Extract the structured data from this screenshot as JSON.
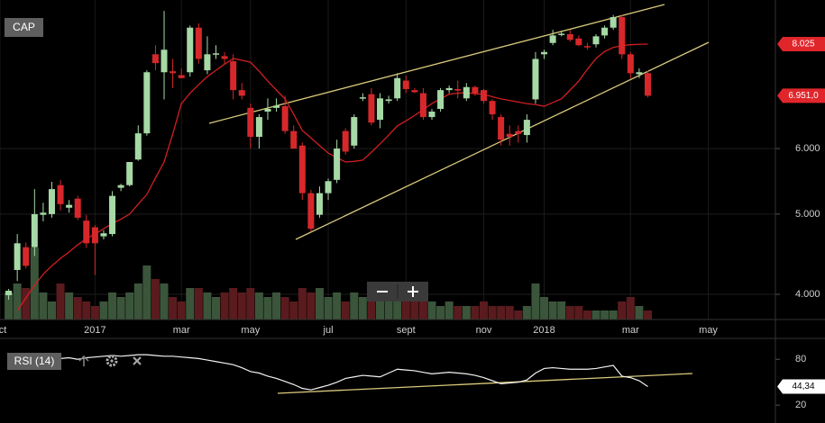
{
  "chart_data": [
    {
      "type": "candlestick",
      "title": "CAP",
      "categories": [
        "oct",
        null,
        null,
        null,
        null,
        null,
        null,
        null,
        null,
        null,
        null,
        "2017",
        null,
        null,
        null,
        null,
        null,
        null,
        null,
        null,
        null,
        "mar",
        null,
        null,
        null,
        null,
        null,
        null,
        null,
        "may",
        null,
        null,
        null,
        null,
        null,
        null,
        null,
        null,
        "jul",
        null,
        null,
        null,
        null,
        null,
        null,
        null,
        null,
        "sept",
        null,
        null,
        null,
        null,
        null,
        null,
        null,
        null,
        "nov",
        null,
        null,
        null,
        null,
        null,
        null,
        "2018",
        null,
        null,
        null,
        null,
        null,
        null,
        null,
        null,
        null,
        "mar",
        null,
        null,
        null,
        null,
        null,
        null,
        null,
        null,
        "may"
      ],
      "open": [
        null,
        3990,
        4280,
        4560,
        4560,
        4990,
        5000,
        5420,
        5090,
        5220,
        4910,
        4820,
        4700,
        4730,
        5380,
        5420,
        5820,
        6260,
        7800,
        7420,
        7440,
        7360,
        7420,
        8400,
        7460,
        7810,
        7760,
        7650,
        7060,
        6720,
        6200,
        6650,
        6720,
        6750,
        6300,
        6050,
        5300,
        4990,
        5300,
        5500,
        6300,
        6050,
        6900,
        6980,
        6500,
        6850,
        6900,
        7250,
        7060,
        7000,
        6550,
        6700,
        7060,
        7080,
        6900,
        7120,
        7060,
        6850,
        6550,
        6250,
        6300,
        6230,
        6880,
        7800,
        8050,
        8240,
        8250,
        8150,
        7980,
        8020,
        8220,
        8400,
        8650,
        7800,
        7380,
        7400,
        null,
        null,
        null,
        null,
        null,
        null,
        null
      ],
      "high": [
        null,
        4060,
        4730,
        4620,
        5360,
        5160,
        5470,
        5500,
        5200,
        5260,
        4990,
        4850,
        4780,
        5330,
        5440,
        5780,
        6400,
        7460,
        8000,
        8800,
        7700,
        7500,
        8450,
        8500,
        8200,
        8000,
        7850,
        7800,
        7200,
        6800,
        6600,
        6900,
        6900,
        6950,
        6400,
        6100,
        5350,
        5400,
        5520,
        6150,
        6350,
        6600,
        7000,
        7100,
        7000,
        6950,
        7400,
        7350,
        7100,
        7100,
        6700,
        7100,
        7150,
        7250,
        7200,
        7150,
        7080,
        6880,
        6600,
        6400,
        6400,
        6600,
        7850,
        7900,
        8350,
        8330,
        8350,
        8220,
        8050,
        8250,
        8450,
        8700,
        8700,
        7850,
        7500,
        7450,
        null,
        null,
        null,
        null,
        null,
        null,
        null
      ],
      "low": [
        null,
        3940,
        4150,
        4300,
        4450,
        4900,
        4950,
        5050,
        5020,
        4920,
        4550,
        4220,
        4660,
        4700,
        5330,
        5400,
        5800,
        6220,
        7460,
        6880,
        7100,
        7300,
        7330,
        7600,
        7380,
        7700,
        7600,
        6880,
        6880,
        6000,
        6000,
        6500,
        6650,
        6250,
        6000,
        5200,
        4760,
        4950,
        5200,
        5450,
        5900,
        6000,
        6850,
        6400,
        6350,
        6800,
        6850,
        7000,
        7000,
        6500,
        6500,
        6650,
        7000,
        6900,
        6850,
        6950,
        6800,
        6500,
        6050,
        6050,
        6100,
        6100,
        6800,
        7700,
        8000,
        8200,
        8080,
        7980,
        7900,
        7950,
        8150,
        8350,
        7700,
        7300,
        7300,
        6920,
        null,
        null,
        null,
        null,
        null,
        null,
        null
      ],
      "close": [
        null,
        4040,
        4610,
        4330,
        5000,
        5020,
        5360,
        5140,
        5130,
        4950,
        4610,
        4610,
        4740,
        5260,
        5420,
        5780,
        6260,
        7420,
        7610,
        7900,
        7400,
        7300,
        8400,
        7700,
        7800,
        7820,
        7700,
        7060,
        6950,
        6200,
        6550,
        6700,
        6760,
        6300,
        6000,
        5300,
        4800,
        5300,
        5480,
        6000,
        5950,
        6550,
        6920,
        6450,
        6900,
        6880,
        7300,
        7080,
        7020,
        6550,
        6650,
        7060,
        7100,
        7050,
        7120,
        7000,
        6850,
        6600,
        6150,
        6200,
        6250,
        6500,
        7700,
        7850,
        8220,
        8260,
        8120,
        8000,
        7950,
        8200,
        8400,
        8650,
        7800,
        7400,
        7420,
        6951,
        null,
        null,
        null,
        null,
        null,
        null,
        null
      ],
      "volume": [
        null,
        30,
        40,
        35,
        80,
        30,
        20,
        40,
        30,
        25,
        20,
        15,
        20,
        30,
        25,
        30,
        40,
        60,
        45,
        40,
        25,
        20,
        35,
        35,
        30,
        25,
        30,
        35,
        30,
        35,
        30,
        25,
        30,
        25,
        20,
        35,
        30,
        35,
        25,
        30,
        20,
        30,
        25,
        20,
        25,
        25,
        30,
        20,
        20,
        20,
        20,
        15,
        20,
        15,
        15,
        15,
        20,
        15,
        15,
        15,
        10,
        15,
        40,
        25,
        20,
        20,
        15,
        15,
        10,
        10,
        10,
        10,
        20,
        25,
        15,
        10,
        null,
        null,
        null,
        null,
        null,
        null,
        null
      ],
      "volume_lim": [
        0,
        100
      ],
      "ma": [
        null,
        null,
        3820,
        3960,
        4100,
        4230,
        4330,
        4420,
        4500,
        4590,
        4670,
        4730,
        4800,
        4870,
        4930,
        5000,
        5140,
        5280,
        5530,
        5780,
        6250,
        6800,
        7000,
        7170,
        7330,
        7460,
        7590,
        7710,
        7670,
        7630,
        7440,
        7240,
        7060,
        6890,
        6600,
        6310,
        6180,
        6050,
        5925,
        5850,
        5780,
        5790,
        5810,
        5940,
        6080,
        6230,
        6390,
        6480,
        6580,
        6690,
        6800,
        6890,
        6980,
        7000,
        7010,
        6990,
        6980,
        6930,
        6890,
        6860,
        6830,
        6800,
        6780,
        6750,
        6820,
        6890,
        7060,
        7240,
        7480,
        7710,
        7860,
        7950,
        7990,
        8010,
        8020,
        8025,
        null,
        null,
        null,
        null,
        null,
        null,
        null
      ],
      "colors": {
        "up": "#a6d9a6",
        "down": "#d6282b",
        "volume_up": "#3b553b",
        "volume_down": "#5a1b1e",
        "ma": "#d11f1f"
      },
      "ylim": [
        3729,
        9072
      ],
      "log_scale": true,
      "yticks": [
        {
          "value": 4000,
          "label": "4.000"
        },
        {
          "value": 5000,
          "label": "5.000"
        },
        {
          "value": 6000,
          "label": "6.000"
        }
      ],
      "grid": true,
      "badges": [
        {
          "value": 8025,
          "label": "8.025",
          "color": "#e0262b"
        },
        {
          "value": 6951,
          "label": "6.951,0",
          "color": "#e0262b"
        }
      ]
    },
    {
      "type": "line",
      "title": "RSI (14)",
      "values": [
        null,
        null,
        null,
        null,
        null,
        null,
        null,
        81,
        82,
        80,
        82,
        83,
        84,
        85,
        84,
        85,
        86,
        86,
        85,
        84,
        84,
        83,
        82,
        81,
        79,
        77,
        75,
        73,
        69,
        64,
        62,
        58,
        55,
        51,
        47,
        42,
        40,
        43,
        46,
        50,
        55,
        57,
        59,
        58,
        57,
        62,
        67,
        66,
        65,
        63,
        61,
        62,
        63,
        62,
        61,
        59,
        56,
        52,
        48,
        49,
        50,
        53,
        62,
        68,
        69,
        68,
        67,
        67,
        67,
        68,
        70,
        72,
        58,
        56,
        52,
        44.34,
        null,
        null,
        null,
        null,
        null,
        null,
        null
      ],
      "color": "#f2f2f2",
      "ylim": [
        -1,
        105
      ],
      "yticks": [
        20,
        80
      ],
      "grid": false,
      "badge": {
        "value": 44.34,
        "label": "44,34",
        "color": "#ffffff"
      }
    }
  ]
}
